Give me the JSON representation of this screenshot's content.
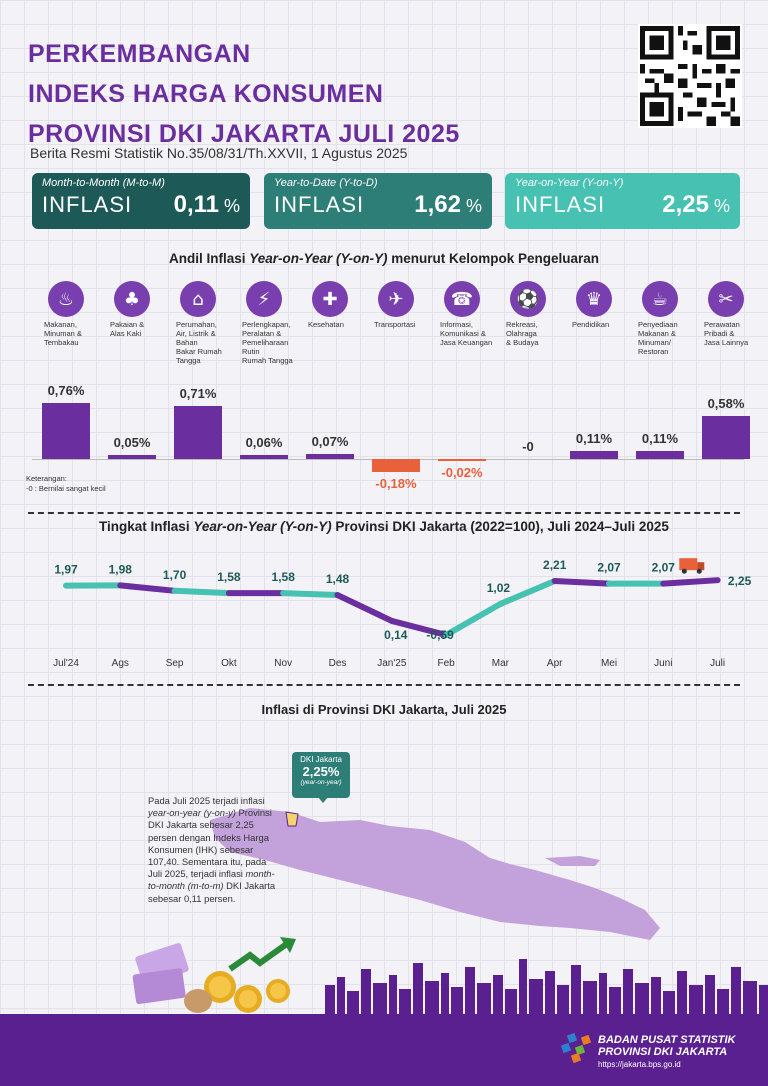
{
  "header": {
    "title_lines": [
      "PERKEMBANGAN",
      "INDEKS HARGA KONSUMEN",
      "PROVINSI DKI JAKARTA JULI 2025"
    ],
    "subtitle": "Berita Resmi Statistik No.35/08/31/Th.XXVII, 1 Agustus 2025"
  },
  "cards": {
    "mtm": {
      "label": "Month-to-Month (M-to-M)",
      "word": "INFLASI",
      "value": "0,11",
      "unit": "%"
    },
    "ytd": {
      "label": "Year-to-Date (Y-to-D)",
      "word": "INFLASI",
      "value": "1,62",
      "unit": "%"
    },
    "yoy": {
      "label": "Year-on-Year (Y-on-Y)",
      "word": "INFLASI",
      "value": "2,25",
      "unit": "%"
    }
  },
  "andil": {
    "title_pre": "Andil Inflasi ",
    "title_italic": "Year-on-Year (Y-on-Y)",
    "title_post": " menurut Kelompok Pengeluaran",
    "legend_title": "Keterangan:",
    "legend_text": "-0 : Bernilai sangat kecil"
  },
  "chart_data": [
    {
      "type": "bar",
      "categories": [
        "Makanan, Minuman & Tembakau",
        "Pakaian & Alas Kaki",
        "Perumahan, Air, Listrik & Bahan Bakar Rumah Tangga",
        "Perlengkapan, Peralatan & Pemeliharaan Rutin Rumah Tangga",
        "Kesehatan",
        "Transportasi",
        "Informasi, Komunikasi & Jasa Keuangan",
        "Rekreasi, Olahraga & Budaya",
        "Pendidikan",
        "Penyediaan Makanan & Minuman/ Restoran",
        "Perawatan Pribadi & Jasa Lainnya"
      ],
      "label_lines": [
        [
          "Makanan,",
          "Minuman &",
          "Tembakau"
        ],
        [
          "Pakaian &",
          "Alas Kaki"
        ],
        [
          "Perumahan,",
          "Air, Listrik &",
          "Bahan",
          "Bakar Rumah",
          "Tangga"
        ],
        [
          "Perlengkapan,",
          "Peralatan &",
          "Pemeliharaan",
          "Rutin",
          "Rumah Tangga"
        ],
        [
          "Kesehatan"
        ],
        [
          "Transportasi"
        ],
        [
          "Informasi,",
          "Komunikasi &",
          "Jasa Keuangan"
        ],
        [
          "Rekreasi,",
          "Olahraga",
          "& Budaya"
        ],
        [
          "Pendidikan"
        ],
        [
          "Penyediaan",
          "Makanan &",
          "Minuman/",
          "Restoran"
        ],
        [
          "Perawatan",
          "Pribadi &",
          "Jasa Lainnya"
        ]
      ],
      "icons": [
        "food-icon",
        "dress-icon",
        "house-icon",
        "appliance-icon",
        "medical-kit-icon",
        "airplane-icon",
        "phone-icon",
        "sport-icon",
        "graduation-cap-icon",
        "restaurant-icon",
        "scissors-tools-icon"
      ],
      "values": [
        0.76,
        0.05,
        0.71,
        0.06,
        0.07,
        -0.18,
        -0.02,
        -0.001,
        0.11,
        0.11,
        0.58
      ],
      "value_labels": [
        "0,76%",
        "0,05%",
        "0,71%",
        "0,06%",
        "0,07%",
        "-0,18%",
        "-0,02%",
        "-0",
        "0,11%",
        "0,11%",
        "0,58%"
      ],
      "unit": "%"
    },
    {
      "type": "line",
      "title_pre": "Tingkat Inflasi ",
      "title_italic": "Year-on-Year (Y-on-Y)",
      "title_post": " Provinsi DKI Jakarta (2022=100), Juli 2024–Juli 2025",
      "categories": [
        "Jul'24",
        "Ags",
        "Sep",
        "Okt",
        "Nov",
        "Des",
        "Jan'25",
        "Feb",
        "Mar",
        "Apr",
        "Mei",
        "Juni",
        "Juli"
      ],
      "values": [
        1.97,
        1.98,
        1.7,
        1.58,
        1.58,
        1.48,
        0.14,
        -0.59,
        1.02,
        2.21,
        2.07,
        2.07,
        2.25
      ],
      "value_labels": [
        "1,97",
        "1,98",
        "1,70",
        "1,58",
        "1,58",
        "1,48",
        "0,14",
        "-0,59",
        "1,02",
        "2,21",
        "2,07",
        "2,07",
        "2,25"
      ],
      "colors": {
        "line_teal": "#46c1b2",
        "line_purple": "#6b2e9e",
        "label": "#1d5a57"
      }
    }
  ],
  "map_section": {
    "title": "Inflasi di Provinsi DKI Jakarta, Juli 2025",
    "para_1": "Pada Juli 2025 terjadi inflasi",
    "para_2": "year-on-year (y-on-y)",
    "para_3": " Provinsi DKI Jakarta sebesar 2,25 persen dengan Indeks Harga Konsumen (IHK) sebesar 107,40. Sementara itu, pada Juli 2025, terjadi inflasi ",
    "para_4": "month-to-month (m-to-m)",
    "para_5": " DKI Jakarta sebesar 0,11 persen.",
    "callout_name": "DKI Jakarta",
    "callout_value": "2,25%",
    "callout_note": "(year-on-year)"
  },
  "footer": {
    "agency_line1": "BADAN PUSAT STATISTIK",
    "agency_line2": "PROVINSI DKI JAKARTA",
    "url": "https://jakarta.bps.go.id"
  },
  "colors": {
    "title_purple": "#6b2e9e",
    "bar_purple": "#6b2e9e",
    "bar_negative": "#e8613a",
    "card_dark": "#1d5a57",
    "card_mid": "#2e7e78",
    "card_light": "#46c1b2",
    "map_fill": "#c3a2dc",
    "footer": "#5b2090"
  }
}
